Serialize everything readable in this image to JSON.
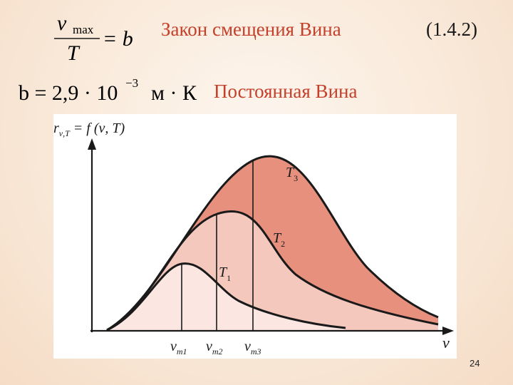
{
  "formula1": {
    "numerator_symbol": "ν",
    "numerator_subscript": "max",
    "denominator": "T",
    "rhs": "= b"
  },
  "title_wien": "Закон смещения Вина",
  "equation_number": "(1.4.2)",
  "formula2": {
    "lhs": "b = 2,9 · 10",
    "exponent": "−3",
    "units": "м · К"
  },
  "title_constant": "Постоянная Вина",
  "diagram": {
    "y_axis_label": {
      "main": "r",
      "sub": "ν,T",
      "rest": " = f (ν, T)"
    },
    "x_axis_label": "ν",
    "curves": [
      {
        "label": "T",
        "sub": "3",
        "color": "#e8907e"
      },
      {
        "label": "T",
        "sub": "2",
        "color": "#f5c8be"
      },
      {
        "label": "T",
        "sub": "1",
        "color": "#fbe6e2"
      }
    ],
    "x_ticks": [
      {
        "label": "ν",
        "sub": "m1"
      },
      {
        "label": "ν",
        "sub": "m2"
      },
      {
        "label": "ν",
        "sub": "m3"
      }
    ]
  },
  "page_number": "24",
  "colors": {
    "title_red": "#c4402a",
    "fill_t3": "#e8907e",
    "fill_t2": "#f5c8be",
    "fill_t1": "#fbe6e2"
  }
}
